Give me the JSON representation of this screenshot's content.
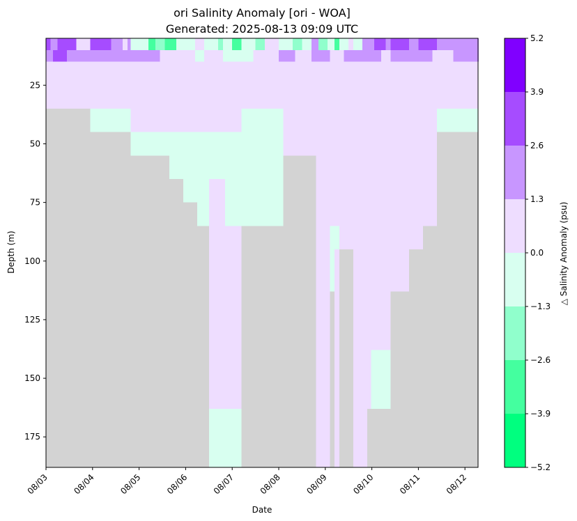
{
  "chart_data": {
    "type": "heatmap",
    "title": "ori Salinity Anomaly [ori - WOA]",
    "subtitle": "Generated: 2025-08-13 09:09 UTC",
    "xlabel": "Date",
    "ylabel": "Depth (m)",
    "x_ticks": [
      "08/03",
      "08/04",
      "08/05",
      "08/06",
      "08/07",
      "08/08",
      "08/09",
      "08/10",
      "08/11",
      "08/12"
    ],
    "xlim": [
      "08/03",
      "08/12 +0.3 day"
    ],
    "ylim": [
      188,
      5
    ],
    "y_inverted": true,
    "y_ticks": [
      25,
      50,
      75,
      100,
      125,
      150,
      175
    ],
    "no_data_color": "#d3d3d3",
    "colorbar": {
      "label": "△ Salinity Anomaly (psu)",
      "boundaries": [
        -5.2,
        -3.9,
        -2.6,
        -1.3,
        0.0,
        1.3,
        2.6,
        3.9,
        5.2
      ],
      "tick_labels": [
        "−5.2",
        "−3.9",
        "−2.6",
        "−1.3",
        "0.0",
        "1.3",
        "2.6",
        "3.9",
        "5.2"
      ],
      "colors": [
        "#00ff7f",
        "#44ff9f",
        "#90ffcc",
        "#d8fff0",
        "#eeddff",
        "#c896ff",
        "#a64cff",
        "#8000ff"
      ]
    },
    "profiles_note": "each segment: [day_start, day_end, depth_top_m, depth_bottom_m, color_bin] ; color_bin 0..7 = anomaly bins from -5.2 to 5.2",
    "segments": [
      [
        0.0,
        9.3,
        5,
        35,
        4
      ],
      [
        0.0,
        0.95,
        35,
        188,
        -1
      ],
      [
        0.95,
        1.82,
        35,
        45,
        3
      ],
      [
        1.82,
        2.65,
        45,
        55,
        -1
      ],
      [
        0.95,
        1.82,
        45,
        188,
        -1
      ],
      [
        1.82,
        2.65,
        55,
        188,
        -1
      ],
      [
        2.65,
        2.95,
        65,
        188,
        -1
      ],
      [
        2.95,
        3.25,
        75,
        188,
        -1
      ],
      [
        3.25,
        3.5,
        85,
        188,
        -1
      ],
      [
        1.82,
        2.65,
        45,
        55,
        3
      ],
      [
        2.65,
        2.95,
        45,
        65,
        3
      ],
      [
        2.95,
        3.25,
        45,
        75,
        3
      ],
      [
        3.25,
        3.5,
        45,
        85,
        3
      ],
      [
        3.5,
        3.85,
        45,
        65,
        3
      ],
      [
        3.5,
        3.85,
        65,
        85,
        4
      ],
      [
        3.5,
        3.85,
        85,
        163,
        4
      ],
      [
        3.5,
        4.2,
        163,
        188,
        3
      ],
      [
        3.85,
        4.2,
        65,
        163,
        4
      ],
      [
        3.85,
        4.2,
        45,
        65,
        3
      ],
      [
        3.85,
        4.2,
        65,
        85,
        3
      ],
      [
        4.2,
        5.1,
        85,
        188,
        -1
      ],
      [
        4.2,
        5.1,
        35,
        55,
        3
      ],
      [
        4.2,
        5.1,
        55,
        85,
        3
      ],
      [
        5.1,
        5.8,
        55,
        188,
        -1
      ],
      [
        5.8,
        6.1,
        55,
        85,
        4
      ],
      [
        6.1,
        6.2,
        85,
        113,
        3
      ],
      [
        6.1,
        6.2,
        113,
        188,
        -1
      ],
      [
        6.2,
        6.3,
        85,
        95,
        3
      ],
      [
        6.3,
        6.6,
        95,
        188,
        -1
      ],
      [
        6.6,
        6.9,
        85,
        138,
        4
      ],
      [
        6.9,
        6.98,
        138,
        163,
        4
      ],
      [
        6.98,
        7.4,
        138,
        163,
        3
      ],
      [
        6.9,
        7.4,
        163,
        188,
        -1
      ],
      [
        7.4,
        7.8,
        113,
        188,
        -1
      ],
      [
        7.8,
        7.95,
        95,
        188,
        -1
      ],
      [
        7.95,
        8.1,
        75,
        188,
        -1
      ],
      [
        8.1,
        8.4,
        65,
        188,
        -1
      ],
      [
        8.4,
        9.3,
        45,
        188,
        -1
      ],
      [
        8.4,
        9.3,
        35,
        45,
        3
      ],
      [
        5.8,
        6.6,
        45,
        85,
        4
      ],
      [
        6.6,
        8.4,
        45,
        85,
        4
      ],
      [
        6.6,
        7.4,
        85,
        113,
        4
      ],
      [
        7.4,
        8.1,
        85,
        95,
        4
      ],
      [
        8.1,
        8.4,
        45,
        65,
        4
      ]
    ],
    "legend": "colorbar on right"
  }
}
